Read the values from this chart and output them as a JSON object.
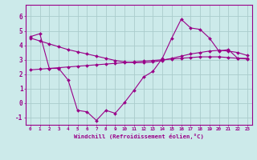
{
  "xlabel": "Windchill (Refroidissement éolien,°C)",
  "background_color": "#cceaea",
  "grid_color": "#aacccc",
  "line_color": "#990088",
  "x_hours": [
    0,
    1,
    2,
    3,
    4,
    5,
    6,
    7,
    8,
    9,
    10,
    11,
    12,
    13,
    14,
    15,
    16,
    17,
    18,
    19,
    20,
    21,
    22,
    23
  ],
  "line1_y": [
    4.6,
    4.8,
    2.4,
    2.4,
    1.6,
    -0.5,
    -0.6,
    -1.2,
    -0.5,
    -0.7,
    0.05,
    0.9,
    1.8,
    2.2,
    3.1,
    4.5,
    5.8,
    5.2,
    5.1,
    4.5,
    3.6,
    3.7,
    3.1,
    3.1
  ],
  "line2_y": [
    4.5,
    4.3,
    4.1,
    3.9,
    3.7,
    3.55,
    3.4,
    3.25,
    3.1,
    2.95,
    2.85,
    2.8,
    2.8,
    2.85,
    2.95,
    3.1,
    3.25,
    3.4,
    3.5,
    3.6,
    3.65,
    3.6,
    3.5,
    3.3
  ],
  "line3_y": [
    2.3,
    2.35,
    2.4,
    2.45,
    2.5,
    2.55,
    2.6,
    2.65,
    2.7,
    2.75,
    2.8,
    2.85,
    2.9,
    2.95,
    3.0,
    3.05,
    3.1,
    3.15,
    3.2,
    3.2,
    3.2,
    3.15,
    3.1,
    3.05
  ],
  "ylim": [
    -1.5,
    6.8
  ],
  "yticks": [
    -1,
    0,
    1,
    2,
    3,
    4,
    5,
    6
  ]
}
